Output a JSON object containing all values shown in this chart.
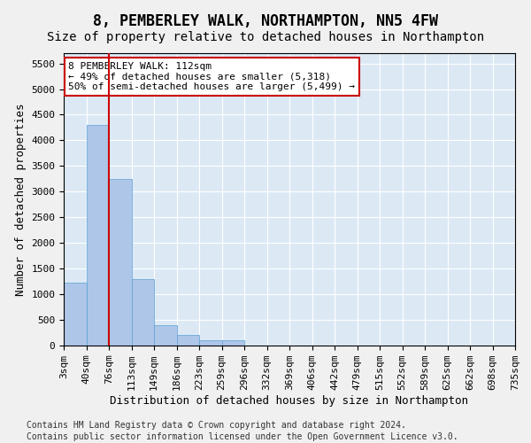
{
  "title": "8, PEMBERLEY WALK, NORTHAMPTON, NN5 4FW",
  "subtitle": "Size of property relative to detached houses in Northampton",
  "xlabel": "Distribution of detached houses by size in Northampton",
  "ylabel": "Number of detached properties",
  "footnote1": "Contains HM Land Registry data © Crown copyright and database right 2024.",
  "footnote2": "Contains public sector information licensed under the Open Government Licence v3.0.",
  "annotation_line1": "8 PEMBERLEY WALK: 112sqm",
  "annotation_line2": "← 49% of detached houses are smaller (5,318)",
  "annotation_line3": "50% of semi-detached houses are larger (5,499) →",
  "bar_values": [
    1230,
    4300,
    3250,
    1300,
    400,
    200,
    100,
    100,
    0,
    0,
    0,
    0,
    0,
    0,
    0,
    0,
    0,
    0,
    0,
    0
  ],
  "categories": [
    "3sqm",
    "40sqm",
    "76sqm",
    "113sqm",
    "149sqm",
    "186sqm",
    "223sqm",
    "259sqm",
    "296sqm",
    "332sqm",
    "369sqm",
    "406sqm",
    "442sqm",
    "479sqm",
    "515sqm",
    "552sqm",
    "589sqm",
    "625sqm",
    "662sqm",
    "698sqm",
    "735sqm"
  ],
  "bar_color": "#aec6e8",
  "bar_edge_color": "#5a9fd4",
  "vline_x": 2,
  "vline_color": "#cc0000",
  "ylim": [
    0,
    5700
  ],
  "yticks": [
    0,
    500,
    1000,
    1500,
    2000,
    2500,
    3000,
    3500,
    4000,
    4500,
    5000,
    5500
  ],
  "bg_color": "#dce9f5",
  "annotation_box_color": "#cc0000",
  "title_fontsize": 12,
  "subtitle_fontsize": 10,
  "axis_label_fontsize": 9,
  "tick_fontsize": 8,
  "annotation_fontsize": 8
}
